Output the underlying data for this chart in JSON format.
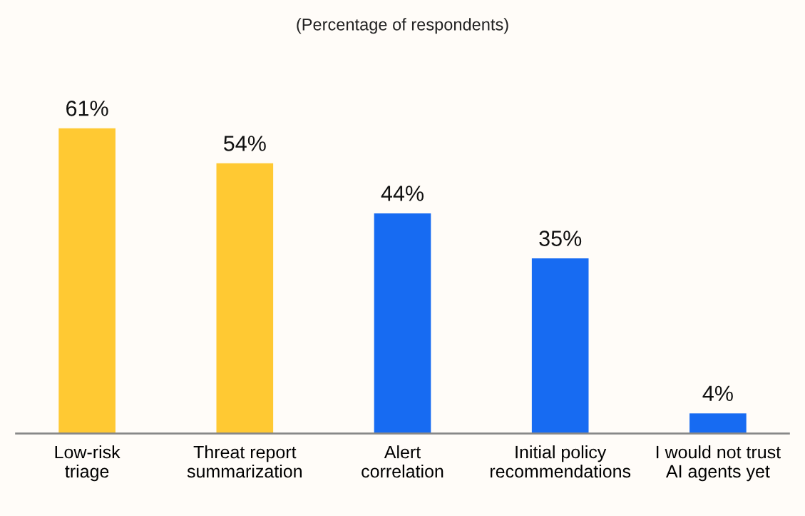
{
  "chart_data": {
    "type": "bar",
    "title": "(Percentage of respondents)",
    "categories": [
      "Low-risk\ntriage",
      "Threat report\nsummarization",
      "Alert\ncorrelation",
      "Initial policy\nrecommendations",
      "I would not trust\nAI agents yet"
    ],
    "values": [
      61,
      54,
      44,
      35,
      4
    ],
    "colors": [
      "#ffc933",
      "#ffc933",
      "#176bf2",
      "#176bf2",
      "#176bf2"
    ],
    "value_labels": [
      "61%",
      "54%",
      "44%",
      "35%",
      "4%"
    ],
    "grid": false
  }
}
